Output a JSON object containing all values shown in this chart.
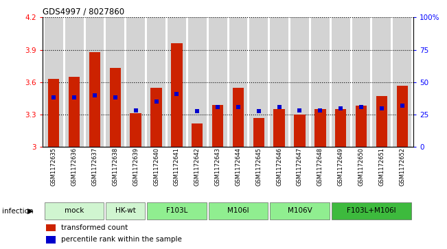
{
  "title": "GDS4997 / 8027860",
  "samples": [
    "GSM1172635",
    "GSM1172636",
    "GSM1172637",
    "GSM1172638",
    "GSM1172639",
    "GSM1172640",
    "GSM1172641",
    "GSM1172642",
    "GSM1172643",
    "GSM1172644",
    "GSM1172645",
    "GSM1172646",
    "GSM1172647",
    "GSM1172648",
    "GSM1172649",
    "GSM1172650",
    "GSM1172651",
    "GSM1172652"
  ],
  "bar_values": [
    3.63,
    3.65,
    3.88,
    3.73,
    3.31,
    3.55,
    3.96,
    3.22,
    3.39,
    3.55,
    3.27,
    3.35,
    3.3,
    3.35,
    3.35,
    3.38,
    3.47,
    3.57
  ],
  "percentile_values": [
    3.46,
    3.46,
    3.48,
    3.46,
    3.34,
    3.42,
    3.49,
    3.33,
    3.37,
    3.37,
    3.33,
    3.37,
    3.34,
    3.34,
    3.36,
    3.37,
    3.36,
    3.38
  ],
  "ylim_left": [
    3.0,
    4.2
  ],
  "ylim_right": [
    0,
    100
  ],
  "yticks_left": [
    3.0,
    3.3,
    3.6,
    3.9,
    4.2
  ],
  "yticks_right": [
    0,
    25,
    50,
    75,
    100
  ],
  "ytick_labels_left": [
    "3",
    "3.3",
    "3.6",
    "3.9",
    "4.2"
  ],
  "ytick_labels_right": [
    "0",
    "25",
    "50",
    "75",
    "100%"
  ],
  "bar_color": "#cc2200",
  "blue_marker_color": "#0000cc",
  "bar_width": 0.55,
  "infection_label": "infection",
  "legend_entries": [
    "transformed count",
    "percentile rank within the sample"
  ],
  "groups_info": [
    {
      "label": "mock",
      "color": "#d0f5d0",
      "indices": [
        0,
        1,
        2
      ]
    },
    {
      "label": "HK-wt",
      "color": "#d0f5d0",
      "indices": [
        3,
        4
      ]
    },
    {
      "label": "F103L",
      "color": "#90ee90",
      "indices": [
        5,
        6,
        7
      ]
    },
    {
      "label": "M106I",
      "color": "#90ee90",
      "indices": [
        8,
        9,
        10
      ]
    },
    {
      "label": "M106V",
      "color": "#90ee90",
      "indices": [
        11,
        12,
        13
      ]
    },
    {
      "label": "F103L+M106I",
      "color": "#3dba3d",
      "indices": [
        14,
        15,
        16,
        17
      ]
    }
  ]
}
